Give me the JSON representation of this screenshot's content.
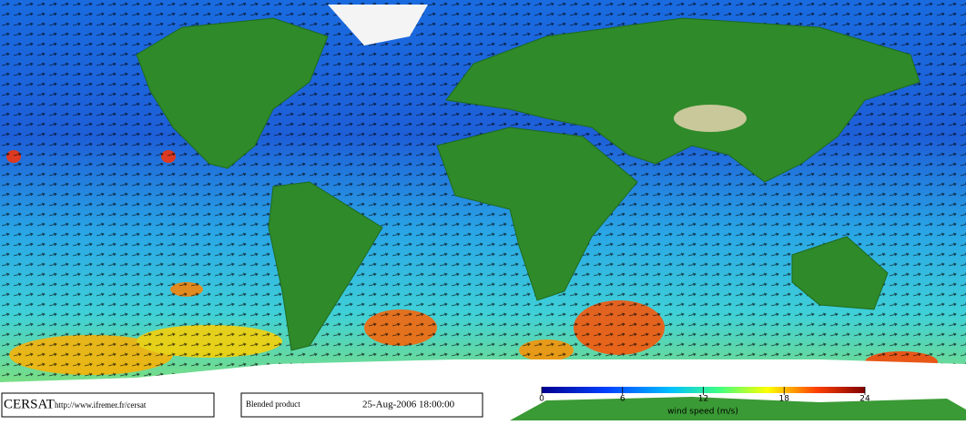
{
  "footer": {
    "logo": "CERSAT",
    "url": "http://www.ifremer.fr/cersat",
    "product": "Blended product",
    "date": "25-Aug-2006 18:00:00"
  },
  "colorbar": {
    "label": "wind speed (m/s)",
    "lim": [
      0,
      24
    ],
    "ticks": [
      0,
      6,
      12,
      18,
      24
    ]
  }
}
